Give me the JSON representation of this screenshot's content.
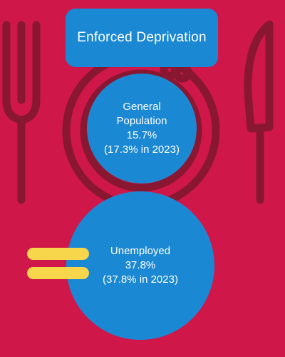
{
  "title": "Enforced Deprivation",
  "colors": {
    "background": "#d0174a",
    "circle": "#1b88d3",
    "line_art": "#8a1731",
    "equals_sign": "#f7d64b",
    "text": "#ffffff"
  },
  "icons": [
    "fork-icon",
    "plate-icon",
    "knife-icon",
    "equals-icon"
  ],
  "general": {
    "name": "General Population",
    "value": "15.7%",
    "prior": "(17.3% in 2023)"
  },
  "unemployed": {
    "name": "Unemployed",
    "value": "37.8%",
    "prior": "(37.8% in 2023)"
  }
}
